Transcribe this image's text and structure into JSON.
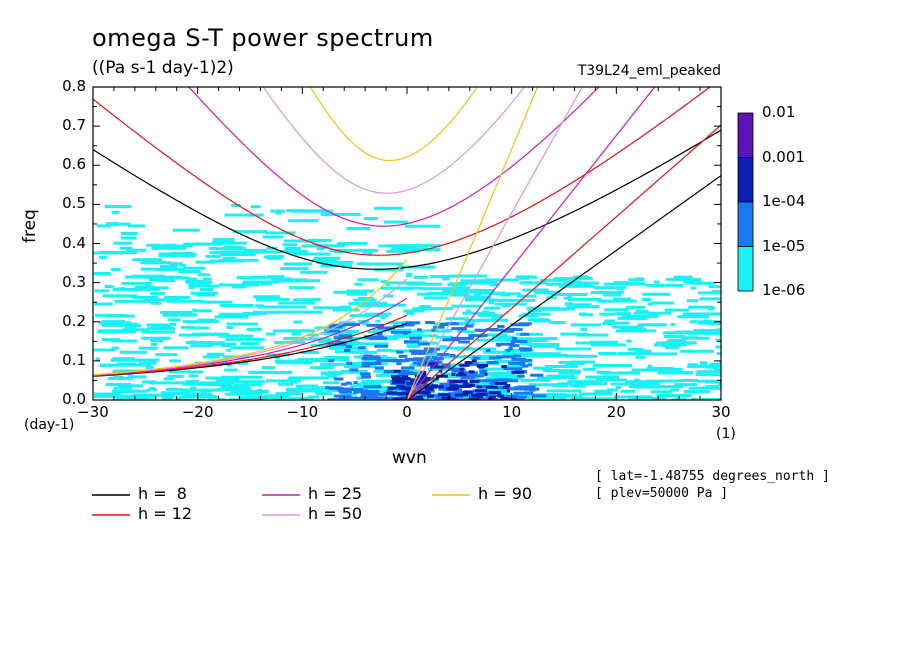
{
  "chart_data": {
    "type": "heatmap",
    "title": "omega S-T power spectrum",
    "units": "((Pa s-1 day-1)2)",
    "experiment": "T39L24_eml_peaked",
    "xlabel": "wvn",
    "ylabel": "freq",
    "x_unit": "(1)",
    "y_unit": "(day-1)",
    "xlim": [
      -30,
      30
    ],
    "ylim": [
      0,
      0.8
    ],
    "x_ticks": [
      "−30",
      "−20",
      "−10",
      "0",
      "10",
      "20",
      "30"
    ],
    "x_tick_values": [
      -30,
      -20,
      -10,
      0,
      10,
      20,
      30
    ],
    "y_ticks": [
      "0.0",
      "0.1",
      "0.2",
      "0.3",
      "0.4",
      "0.5",
      "0.6",
      "0.7",
      "0.8"
    ],
    "y_tick_values": [
      0,
      0.1,
      0.2,
      0.3,
      0.4,
      0.5,
      0.6,
      0.7,
      0.8
    ],
    "colorbar": {
      "labels": [
        "0.01",
        "0.001",
        "1e-04",
        "1e-05",
        "1e-06"
      ],
      "colors": [
        "#5b14b8",
        "#0d1fb0",
        "#1a78f5",
        "#19f1f4"
      ]
    },
    "power_regions": [
      {
        "level": "1e-06 to 1e-05",
        "color": "#19f1f4",
        "x_range": [
          -30,
          30
        ],
        "freq_range": [
          0,
          0.5
        ]
      },
      {
        "level": "1e-05 to 1e-04",
        "color": "#1a78f5",
        "x_range": [
          -8,
          12
        ],
        "freq_range": [
          0,
          0.2
        ]
      },
      {
        "level": "1e-04 to 0.001",
        "color": "#0d1fb0",
        "x_range": [
          -2,
          10
        ],
        "freq_range": [
          0,
          0.1
        ]
      }
    ],
    "series": [
      {
        "name": "h =  8",
        "color": "#000000",
        "h": 8
      },
      {
        "name": "h = 12",
        "color": "#e31212",
        "h": 12
      },
      {
        "name": "h = 25",
        "color": "#d417b8",
        "h": 25
      },
      {
        "name": "h = 50",
        "color": "#dd96dd",
        "h": 50
      },
      {
        "name": "h = 90",
        "color": "#f2c412",
        "h": 90
      }
    ],
    "curve_families": [
      "inertio-gravity (n=1)",
      "Kelvin",
      "mixed Rossby-gravity"
    ],
    "annotations": [
      "[ lat=-1.48755 degrees_north ]",
      "[ plev=50000 Pa ]"
    ],
    "grid": false
  }
}
